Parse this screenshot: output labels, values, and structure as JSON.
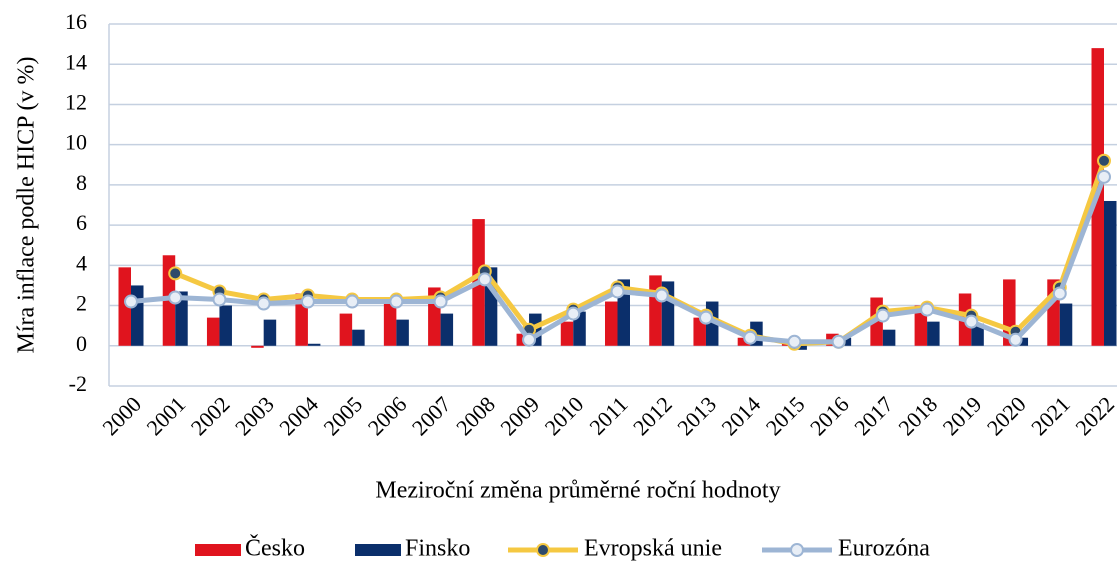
{
  "chart_data": {
    "type": "bar_line",
    "y_label": "Míra inflace podle HICP (v %)",
    "x_label": "Meziroční změna průměrné roční hodnoty",
    "categories": [
      "2000",
      "2001",
      "2002",
      "2003",
      "2004",
      "2005",
      "2006",
      "2007",
      "2008",
      "2009",
      "2010",
      "2011",
      "2012",
      "2013",
      "2014",
      "2015",
      "2016",
      "2017",
      "2018",
      "2019",
      "2020",
      "2021",
      "2022"
    ],
    "ylim": [
      -2,
      16
    ],
    "yticks": [
      -2,
      0,
      2,
      4,
      6,
      8,
      10,
      12,
      14,
      16
    ],
    "grid": true,
    "series": [
      {
        "name": "Česko",
        "kind": "bar",
        "color": "#e0141e",
        "values": [
          3.9,
          4.5,
          1.4,
          -0.1,
          2.6,
          1.6,
          2.1,
          2.9,
          6.3,
          0.6,
          1.2,
          2.2,
          3.5,
          1.4,
          0.4,
          0.3,
          0.6,
          2.4,
          2.0,
          2.6,
          3.3,
          3.3,
          14.8
        ]
      },
      {
        "name": "Finsko",
        "kind": "bar",
        "color": "#0b2f6b",
        "values": [
          3.0,
          2.7,
          2.0,
          1.3,
          0.1,
          0.8,
          1.3,
          1.6,
          3.9,
          1.6,
          1.7,
          3.3,
          3.2,
          2.2,
          1.2,
          -0.2,
          0.4,
          0.8,
          1.2,
          1.1,
          0.4,
          2.1,
          7.2
        ]
      },
      {
        "name": "Evropská unie",
        "kind": "line",
        "color": "#f5c842",
        "marker_color": "#2e4a6b",
        "values": [
          null,
          3.6,
          2.7,
          2.3,
          2.5,
          2.3,
          2.3,
          2.4,
          3.7,
          0.8,
          1.8,
          2.9,
          2.6,
          1.5,
          0.5,
          0.1,
          0.2,
          1.7,
          1.9,
          1.5,
          0.7,
          2.9,
          9.2
        ]
      },
      {
        "name": "Eurozóna",
        "kind": "line",
        "color": "#9db5d4",
        "marker_color": "#e8eef6",
        "values": [
          2.2,
          2.4,
          2.3,
          2.1,
          2.2,
          2.2,
          2.2,
          2.2,
          3.3,
          0.3,
          1.6,
          2.7,
          2.5,
          1.4,
          0.4,
          0.2,
          0.2,
          1.5,
          1.8,
          1.2,
          0.3,
          2.6,
          8.4
        ]
      }
    ]
  }
}
